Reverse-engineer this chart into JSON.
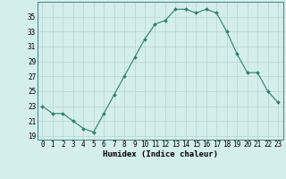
{
  "x": [
    0,
    1,
    2,
    3,
    4,
    5,
    6,
    7,
    8,
    9,
    10,
    11,
    12,
    13,
    14,
    15,
    16,
    17,
    18,
    19,
    20,
    21,
    22,
    23
  ],
  "y": [
    23,
    22,
    22,
    21,
    20,
    19.5,
    22,
    24.5,
    27,
    29.5,
    32,
    34,
    34.5,
    36,
    36,
    35.5,
    36,
    35.5,
    33,
    30,
    27.5,
    27.5,
    25,
    23.5
  ],
  "xlabel": "Humidex (Indice chaleur)",
  "xlim": [
    -0.5,
    23.5
  ],
  "ylim": [
    18.5,
    37
  ],
  "yticks": [
    19,
    21,
    23,
    25,
    27,
    29,
    31,
    33,
    35
  ],
  "xticks": [
    0,
    1,
    2,
    3,
    4,
    5,
    6,
    7,
    8,
    9,
    10,
    11,
    12,
    13,
    14,
    15,
    16,
    17,
    18,
    19,
    20,
    21,
    22,
    23
  ],
  "line_color": "#2e7d6e",
  "marker": "D",
  "marker_size": 2.0,
  "bg_color": "#d4eeed",
  "grid_color": "#b8d4d2",
  "label_fontsize": 6.5,
  "tick_fontsize": 5.5
}
